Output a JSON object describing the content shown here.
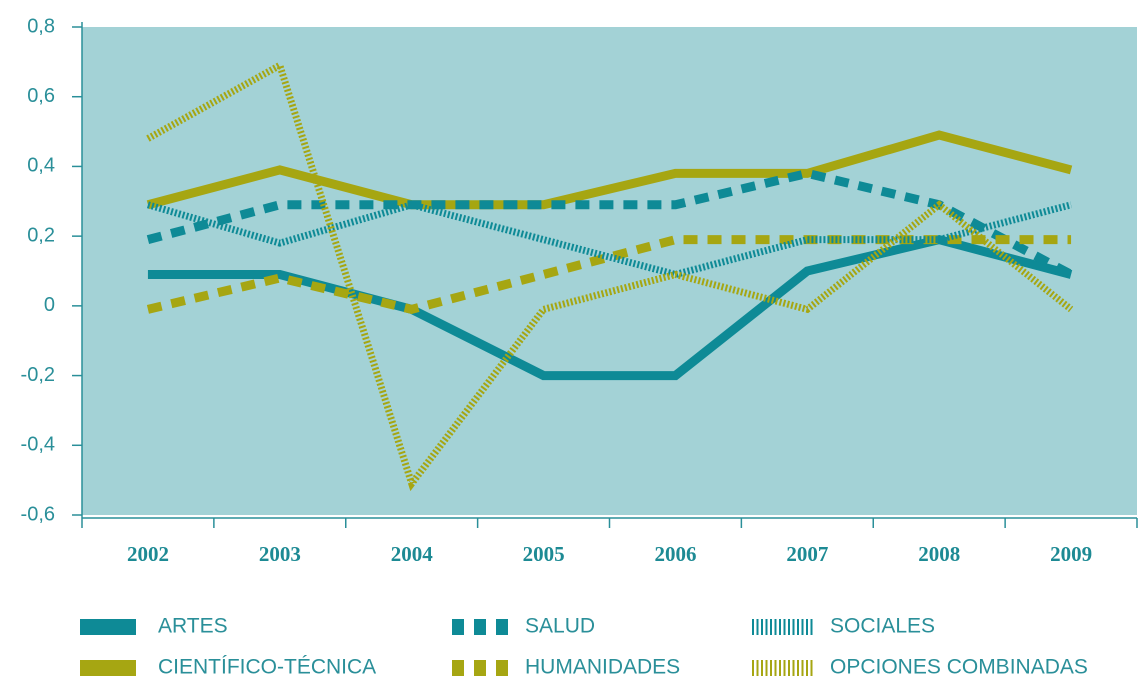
{
  "chart_data": {
    "type": "line",
    "categories": [
      "2002",
      "2003",
      "2004",
      "2005",
      "2006",
      "2007",
      "2008",
      "2009"
    ],
    "series": [
      {
        "name": "ARTES",
        "color": "#0e8a96",
        "dash": "solid",
        "values": [
          0.09,
          0.09,
          -0.01,
          -0.2,
          -0.2,
          0.1,
          0.19,
          0.09
        ]
      },
      {
        "name": "CIENTÍFICO-TÉCNICA",
        "color": "#a6a612",
        "dash": "solid",
        "values": [
          0.29,
          0.39,
          0.29,
          0.29,
          0.38,
          0.38,
          0.49,
          0.39
        ]
      },
      {
        "name": "SALUD",
        "color": "#0e8a96",
        "dash": "dashed",
        "values": [
          0.19,
          0.29,
          0.29,
          0.29,
          0.29,
          0.38,
          0.29,
          0.09
        ]
      },
      {
        "name": "HUMANIDADES",
        "color": "#a6a612",
        "dash": "dashed",
        "values": [
          -0.01,
          0.08,
          -0.01,
          0.09,
          0.19,
          0.19,
          0.19,
          0.19
        ]
      },
      {
        "name": "SOCIALES",
        "color": "#0e8a96",
        "dash": "dotted",
        "values": [
          0.29,
          0.18,
          0.29,
          0.19,
          0.09,
          0.19,
          0.19,
          0.29
        ]
      },
      {
        "name": "OPCIONES COMBINADAS",
        "color": "#a6a612",
        "dash": "dotted",
        "values": [
          0.48,
          0.69,
          -0.51,
          -0.01,
          0.09,
          -0.01,
          0.29,
          -0.01
        ]
      }
    ],
    "ylim": [
      -0.6,
      0.8
    ],
    "yticks": [
      {
        "value": -0.6,
        "label": "-0,6"
      },
      {
        "value": -0.4,
        "label": "-0,4"
      },
      {
        "value": -0.2,
        "label": "-0,2"
      },
      0,
      {
        "value": 0.2,
        "label": "0,2"
      },
      {
        "value": 0.4,
        "label": "0,4"
      },
      {
        "value": 0.6,
        "label": "0,6"
      },
      {
        "value": 0.8,
        "label": "0,8"
      }
    ],
    "grid": false
  }
}
